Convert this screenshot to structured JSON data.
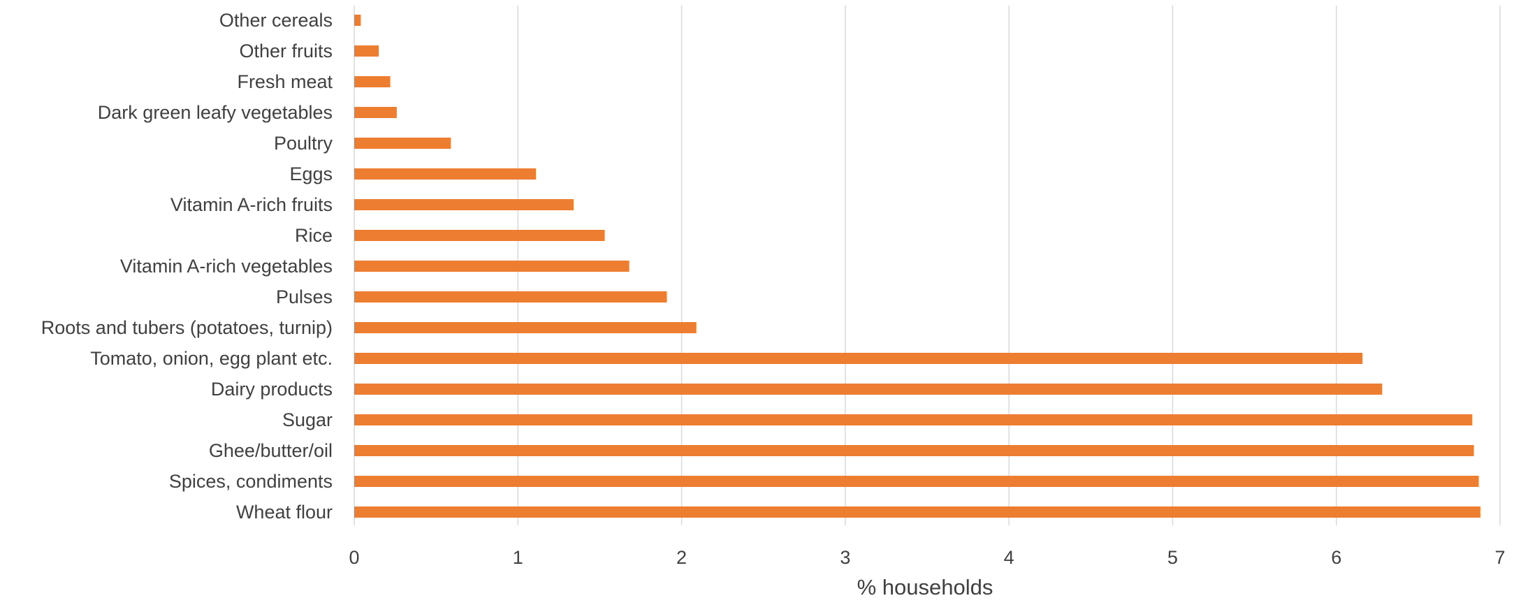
{
  "chart_data": {
    "type": "bar",
    "orientation": "horizontal",
    "title": "",
    "xlabel": "% households",
    "ylabel": "",
    "xlim": [
      0,
      7
    ],
    "xticks": [
      0,
      1,
      2,
      3,
      4,
      5,
      6,
      7
    ],
    "grid": true,
    "legend": "none",
    "bar_color": "#ED7D31",
    "categories": [
      "Other cereals",
      "Other fruits",
      "Fresh meat",
      "Dark green leafy vegetables",
      "Poultry",
      "Eggs",
      "Vitamin A-rich fruits",
      "Rice",
      "Vitamin A-rich vegetables",
      "Pulses",
      "Roots and tubers (potatoes, turnip)",
      "Tomato, onion, egg plant etc.",
      "Dairy products",
      "Sugar",
      "Ghee/butter/oil",
      "Spices, condiments",
      "Wheat flour"
    ],
    "values": [
      0.04,
      0.15,
      0.22,
      0.26,
      0.59,
      1.11,
      1.34,
      1.53,
      1.68,
      1.91,
      2.09,
      6.16,
      6.28,
      6.83,
      6.84,
      6.87,
      6.88
    ]
  }
}
